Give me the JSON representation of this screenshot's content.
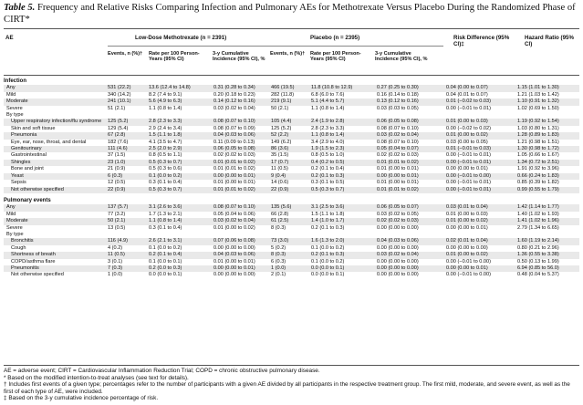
{
  "title": {
    "label": "Table 5.",
    "text": " Frequency and Relative Risks Comparing Infection and Pulmonary AEs for Methotrexate Versus Placebo During the Randomized Phase of CIRT*"
  },
  "headers": {
    "ae": "AE",
    "mtx_group": "Low-Dose Methotrexate (n = 2391)",
    "placebo_group": "Placebo (n = 2395)",
    "risk_diff": "Risk Difference (95% CI)‡",
    "hazard_ratio": "Hazard Ratio (95% CI)",
    "events": "Events, n (%)†",
    "rate": "Rate per 100 Person-Years (95% CI)",
    "cumulative": "3-y Cumulative Incidence (95% CI), %"
  },
  "sections": [
    {
      "title": "Infection",
      "rows": [
        {
          "label": "Any",
          "shade": true,
          "cells": [
            "531 (22.2)",
            "13.6 (12.4 to 14.8)",
            "0.31 (0.28 to 0.34)",
            "466 (19.5)",
            "11.8 (10.8 to 12.9)",
            "0.27 (0.25 to 0.30)",
            "0.04 (0.00 to 0.07)",
            "1.15 (1.01 to 1.30)"
          ]
        },
        {
          "label": "Mild",
          "cells": [
            "340 (14.2)",
            "8.2 (7.4 to 9.1)",
            "0.20 (0.18 to 0.23)",
            "282 (11.8)",
            "6.8 (6.0 to 7.6)",
            "0.16 (0.14 to 0.18)",
            "0.04 (0.01 to 0.07)",
            "1.21 (1.03 to 1.42)"
          ]
        },
        {
          "label": "Moderate",
          "shade": true,
          "cells": [
            "241 (10.1)",
            "5.6 (4.9 to 6.3)",
            "0.14 (0.12 to 0.16)",
            "219 (9.1)",
            "5.1 (4.4 to 5.7)",
            "0.13 (0.12 to 0.16)",
            "0.01 (−0.02 to 0.03)",
            "1.10 (0.91 to 1.32)"
          ]
        },
        {
          "label": "Severe",
          "cells": [
            "51 (2.1)",
            "1.1 (0.8 to 1.4)",
            "0.03 (0.02 to 0.04)",
            "50 (2.1)",
            "1.1 (0.8 to 1.4)",
            "0.03 (0.03 to 0.05)",
            "0.00 (−0.01 to 0.01)",
            "1.02 (0.69 to 1.50)"
          ]
        },
        {
          "label": "By type",
          "cells": [
            "",
            "",
            "",
            "",
            "",
            "",
            "",
            ""
          ]
        },
        {
          "label": "Upper respiratory infection/flu syndrome",
          "shade": true,
          "tall": true,
          "indent": true,
          "cells": [
            "125 (5.2)",
            "2.8 (2.3 to 3.3)",
            "0.08 (0.07 to 0.10)",
            "105 (4.4)",
            "2.4 (1.9 to 2.8)",
            "0.06 (0.05 to 0.08)",
            "0.01 (0.00 to 0.03)",
            "1.19 (0.92 to 1.54)"
          ]
        },
        {
          "label": "Skin and soft tissue",
          "indent": true,
          "cells": [
            "129 (5.4)",
            "2.9 (2.4 to 3.4)",
            "0.08 (0.07 to 0.09)",
            "125 (5.2)",
            "2.8 (2.3 to 3.3)",
            "0.08 (0.07 to 0.10)",
            "0.00 (−0.02 to 0.02)",
            "1.03 (0.80 to 1.31)"
          ]
        },
        {
          "label": "Pneumonia",
          "shade": true,
          "indent": true,
          "cells": [
            "67 (2.8)",
            "1.5 (1.1 to 1.8)",
            "0.04 (0.03 to 0.06)",
            "52 (2.2)",
            "1.1 (0.8 to 1.4)",
            "0.03 (0.02 to 0.04)",
            "0.01 (0.00 to 0.02)",
            "1.28 (0.89 to 1.83)"
          ]
        },
        {
          "label": "Eye, ear, nose, throat, and dental",
          "tall": true,
          "indent": true,
          "cells": [
            "182 (7.6)",
            "4.1 (3.5 to 4.7)",
            "0.11 (0.09 to 0.13)",
            "149 (6.2)",
            "3.4 (2.9 to 4.0)",
            "0.08 (0.07 to 0.10)",
            "0.03 (0.00 to 0.05)",
            "1.21 (0.98 to 1.51)"
          ]
        },
        {
          "label": "Genitourinary",
          "shade": true,
          "indent": true,
          "cells": [
            "111 (4.6)",
            "2.5 (2.0 to 2.9)",
            "0.06 (0.05 to 0.08)",
            "86 (3.6)",
            "1.9 (1.5 to 2.3)",
            "0.05 (0.04 to 0.07)",
            "0.01 (−0.01 to 0.03)",
            "1.30 (0.98 to 1.72)"
          ]
        },
        {
          "label": "Gastrointestinal",
          "indent": true,
          "cells": [
            "37 (1.5)",
            "0.8 (0.5 to 1.1)",
            "0.02 (0.02 to 0.03)",
            "35 (1.5)",
            "0.8 (0.5 to 1.0)",
            "0.02 (0.02 to 0.03)",
            "0.00 (−0.01 to 0.01)",
            "1.05 (0.66 to 1.67)"
          ]
        },
        {
          "label": "Shingles",
          "shade": true,
          "indent": true,
          "cells": [
            "23 (1.0)",
            "0.5 (0.3 to 0.7)",
            "0.01 (0.01 to 0.02)",
            "17 (0.7)",
            "0.4 (0.2 to 0.5)",
            "0.01 (0.01 to 0.02)",
            "0.00 (−0.01 to 0.01)",
            "1.34 (0.72 to 2.51)"
          ]
        },
        {
          "label": "Bone and joint",
          "indent": true,
          "cells": [
            "21 (0.9)",
            "0.5 (0.3 to 0.6)",
            "0.01 (0.01 to 0.02)",
            "11 (0.5)",
            "0.2 (0.1 to 0.4)",
            "0.01 (0.00 to 0.01)",
            "0.00 (0.00 to 0.01)",
            "1.91 (0.92 to 3.96)"
          ]
        },
        {
          "label": "Yeast",
          "shade": true,
          "indent": true,
          "cells": [
            "6 (0.3)",
            "0.1 (0.0 to 0.2)",
            "0.00 (0.00 to 0.01)",
            "9 (0.4)",
            "0.2 (0.1 to 0.3)",
            "0.00 (0.00 to 0.01)",
            "0.00 (−0.01 to 0.00)",
            "0.66 (0.24 to 1.83)"
          ]
        },
        {
          "label": "Sepsis",
          "indent": true,
          "cells": [
            "12 (0.5)",
            "0.3 (0.1 to 0.4)",
            "0.01 (0.00 to 0.01)",
            "14 (0.6)",
            "0.3 (0.1 to 0.5)",
            "0.01 (0.00 to 0.01)",
            "0.00 (−0.01 to 0.01)",
            "0.85 (0.39 to 1.82)"
          ]
        },
        {
          "label": "Not otherwise specified",
          "shade": true,
          "indent": true,
          "cells": [
            "22 (0.9)",
            "0.5 (0.3 to 0.7)",
            "0.01 (0.01 to 0.02)",
            "22 (0.9)",
            "0.5 (0.3 to 0.7)",
            "0.01 (0.01 to 0.02)",
            "0.00 (−0.01 to 0.01)",
            "0.99 (0.55 to 1.79)"
          ]
        }
      ]
    },
    {
      "title": "Pulmonary events",
      "rows": [
        {
          "label": "Any",
          "shade": true,
          "cells": [
            "137 (5.7)",
            "3.1 (2.6 to 3.6)",
            "0.08 (0.07 to 0.10)",
            "135 (5.6)",
            "3.1 (2.5 to 3.6)",
            "0.06 (0.05 to 0.07)",
            "0.03 (0.01 to 0.04)",
            "1.42 (1.14 to 1.77)"
          ]
        },
        {
          "label": "Mild",
          "cells": [
            "77 (3.2)",
            "1.7 (1.3 to 2.1)",
            "0.05 (0.04 to 0.06)",
            "66 (2.8)",
            "1.5 (1.1 to 1.8)",
            "0.03 (0.02 to 0.05)",
            "0.01 (0.00 to 0.03)",
            "1.40 (1.02 to 1.93)"
          ]
        },
        {
          "label": "Moderate",
          "shade": true,
          "cells": [
            "50 (2.1)",
            "1.1 (0.8 to 1.4)",
            "0.03 (0.02 to 0.04)",
            "61 (2.5)",
            "1.4 (1.0 to 1.7)",
            "0.02 (0.02 to 0.03)",
            "0.01 (0.00 to 0.02)",
            "1.41 (1.02 to 1.96)"
          ]
        },
        {
          "label": "Severe",
          "cells": [
            "13 (0.5)",
            "0.3 (0.1 to 0.4)",
            "0.01 (0.00 to 0.02)",
            "8 (0.3)",
            "0.2 (0.1 to 0.3)",
            "0.00 (0.00 to 0.00)",
            "0.00 (0.00 to 0.01)",
            "2.79 (1.34 to 6.65)"
          ]
        },
        {
          "label": "By type",
          "cells": [
            "",
            "",
            "",
            "",
            "",
            "",
            "",
            ""
          ]
        },
        {
          "label": "Bronchitis",
          "shade": true,
          "indent": true,
          "cells": [
            "116 (4.9)",
            "2.6 (2.1 to 3.1)",
            "0.07 (0.06 to 0.08)",
            "73 (3.0)",
            "1.6 (1.3 to 2.0)",
            "0.04 (0.03 to 0.06)",
            "0.02 (0.01 to 0.04)",
            "1.60 (1.19 to 2.14)"
          ]
        },
        {
          "label": "Cough",
          "indent": true,
          "cells": [
            "4 (0.2)",
            "0.1 (0.0 to 0.2)",
            "0.00 (0.00 to 0.00)",
            "5 (0.2)",
            "0.1 (0.0 to 0.2)",
            "0.00 (0.00 to 0.00)",
            "0.00 (0.00 to 0.00)",
            "0.80 (0.21 to 2.96)"
          ]
        },
        {
          "label": "Shortness of breath",
          "shade": true,
          "indent": true,
          "cells": [
            "11 (0.5)",
            "0.2 (0.1 to 0.4)",
            "0.04 (0.03 to 0.06)",
            "8 (0.3)",
            "0.2 (0.1 to 0.3)",
            "0.03 (0.02 to 0.04)",
            "0.01 (0.00 to 0.02)",
            "1.36 (0.55 to 3.38)"
          ]
        },
        {
          "label": "COPD/asthma flare",
          "indent": true,
          "cells": [
            "3 (0.1)",
            "0.1 (0.0 to 0.1)",
            "0.01 (0.00 to 0.01)",
            "6 (0.3)",
            "0.1 (0.0 to 0.2)",
            "0.00 (0.00 to 0.00)",
            "0.00 (−0.01 to 0.00)",
            "0.50 (0.13 to 1.99)"
          ]
        },
        {
          "label": "Pneumonitis",
          "shade": true,
          "indent": true,
          "cells": [
            "7 (0.3)",
            "0.2 (0.0 to 0.3)",
            "0.00 (0.00 to 0.01)",
            "1 (0.0)",
            "0.0 (0.0 to 0.1)",
            "0.00 (0.00 to 0.00)",
            "0.00 (0.00 to 0.01)",
            "6.94 (0.85 to 56.0)"
          ]
        },
        {
          "label": "Not otherwise specified",
          "indent": true,
          "cells": [
            "1 (0.0)",
            "0.0 (0.0 to 0.1)",
            "0.00 (0.00 to 0.00)",
            "2 (0.1)",
            "0.0 (0.0 to 0.1)",
            "0.00 (0.00 to 0.00)",
            "0.00 (−0.01 to 0.00)",
            "0.48 (0.04 to 5.37)"
          ]
        }
      ]
    }
  ],
  "footnotes": [
    "AE = adverse event; CIRT = Cardiovascular Inflammation Reduction Trial; COPD = chronic obstructive pulmonary disease.",
    "* Based on the modified intention-to-treat analyses (see text for details).",
    "† Includes first events of a given type; percentages refer to the number of participants with a given AE divided by all participants in the respective treatment group. The first mild, moderate, and severe event, as well as the first of each type of AE, were included.",
    "‡ Based on the 3-y cumulative incidence percentage of risk."
  ]
}
